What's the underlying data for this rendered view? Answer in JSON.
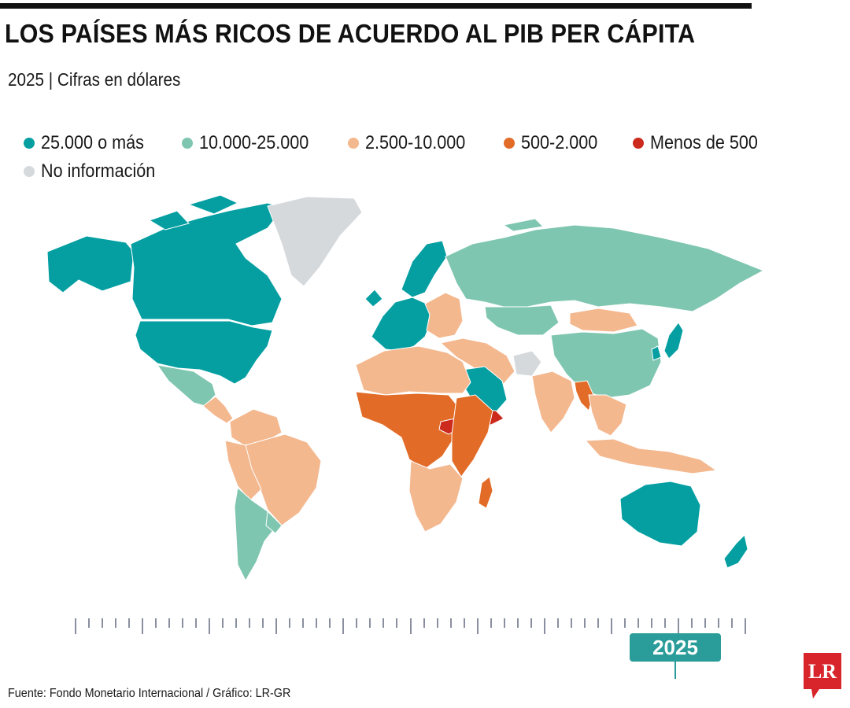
{
  "title": "LOS PAÍSES MÁS RICOS DE ACUERDO AL PIB PER CÁPITA",
  "subtitle": "2025 | Cifras en dólares",
  "legend": [
    {
      "label": "25.000 o más",
      "color": "#059fa2"
    },
    {
      "label": "10.000-25.000",
      "color": "#7fc6b0"
    },
    {
      "label": "2.500-10.000",
      "color": "#f4b88f"
    },
    {
      "label": "500-2.000",
      "color": "#e26b27"
    },
    {
      "label": "Menos de 500",
      "color": "#cd2a1e"
    },
    {
      "label": "No información",
      "color": "#d5d9dc"
    }
  ],
  "map": {
    "regions": [
      {
        "name": "Alaska",
        "category": "25.000 o más"
      },
      {
        "name": "Canada",
        "category": "25.000 o más"
      },
      {
        "name": "United States",
        "category": "25.000 o más"
      },
      {
        "name": "Greenland",
        "category": "No información"
      },
      {
        "name": "Mexico",
        "category": "10.000-25.000"
      },
      {
        "name": "Central America",
        "category": "2.500-10.000"
      },
      {
        "name": "Colombia-Venezuela",
        "category": "2.500-10.000"
      },
      {
        "name": "Brazil",
        "category": "2.500-10.000"
      },
      {
        "name": "Peru-Bolivia",
        "category": "2.500-10.000"
      },
      {
        "name": "Chile-Argentina",
        "category": "10.000-25.000"
      },
      {
        "name": "Uruguay",
        "category": "10.000-25.000"
      },
      {
        "name": "Western Europe",
        "category": "25.000 o más"
      },
      {
        "name": "Scandinavia",
        "category": "25.000 o más"
      },
      {
        "name": "Eastern Europe",
        "category": "2.500-10.000"
      },
      {
        "name": "Russia",
        "category": "10.000-25.000"
      },
      {
        "name": "Kazakhstan",
        "category": "10.000-25.000"
      },
      {
        "name": "Mongolia",
        "category": "2.500-10.000"
      },
      {
        "name": "China",
        "category": "10.000-25.000"
      },
      {
        "name": "Japan",
        "category": "25.000 o más"
      },
      {
        "name": "South Korea",
        "category": "25.000 o más"
      },
      {
        "name": "Middle East",
        "category": "2.500-10.000"
      },
      {
        "name": "Saudi Arabia",
        "category": "25.000 o más"
      },
      {
        "name": "Yemen",
        "category": "Menos de 500"
      },
      {
        "name": "Afghanistan",
        "category": "No información"
      },
      {
        "name": "India",
        "category": "2.500-10.000"
      },
      {
        "name": "Myanmar",
        "category": "500-2.000"
      },
      {
        "name": "Southeast Asia",
        "category": "2.500-10.000"
      },
      {
        "name": "Indonesia",
        "category": "2.500-10.000"
      },
      {
        "name": "North Africa",
        "category": "2.500-10.000"
      },
      {
        "name": "Sahel & Central Africa",
        "category": "500-2.000"
      },
      {
        "name": "South Sudan",
        "category": "Menos de 500"
      },
      {
        "name": "East Africa",
        "category": "500-2.000"
      },
      {
        "name": "Southern Africa",
        "category": "2.500-10.000"
      },
      {
        "name": "Madagascar",
        "category": "500-2.000"
      },
      {
        "name": "Australia",
        "category": "25.000 o más"
      },
      {
        "name": "New Zealand",
        "category": "25.000 o más"
      }
    ]
  },
  "timeline": {
    "selected_year": "2025"
  },
  "source": "Fuente: Fondo Monetario Internacional / Gráfico: LR-GR",
  "logo": {
    "text": "LR",
    "color": "#d8242b"
  }
}
